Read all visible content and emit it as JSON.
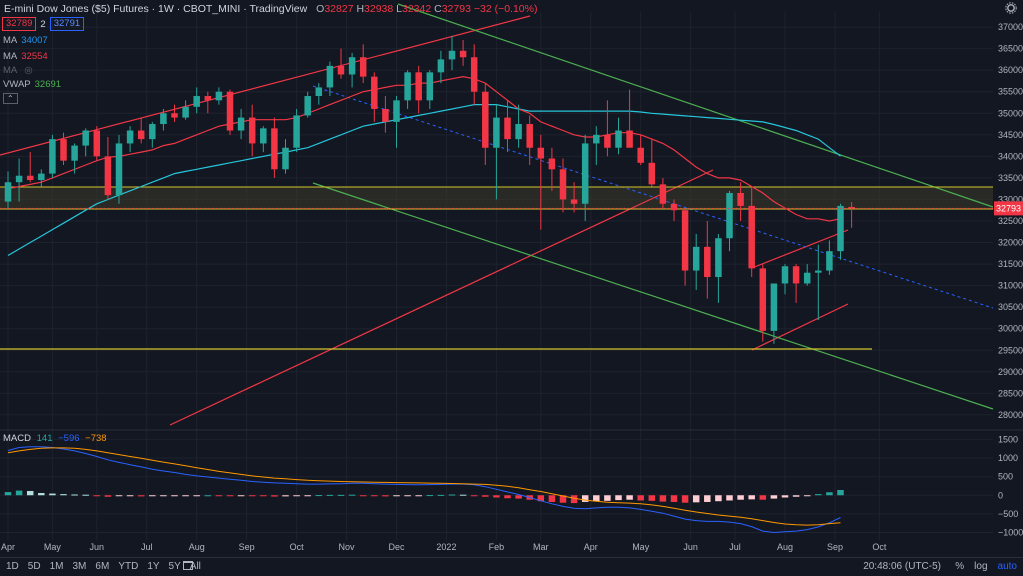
{
  "header": {
    "title": "E-mini Dow Jones ($5) Futures · 1W · CBOT_MINI · TradingView",
    "ohlc": [
      {
        "label": "O",
        "value": "32827"
      },
      {
        "label": "H",
        "value": "32938"
      },
      {
        "label": "L",
        "value": "32342"
      },
      {
        "label": "C",
        "value": "32793"
      }
    ],
    "change": "−32 (−0.10%)",
    "sell_price": "32789",
    "spread": "2",
    "buy_price": "32791"
  },
  "indicators": [
    {
      "name": "MA",
      "value": "34007",
      "color": "#2196f3"
    },
    {
      "name": "MA",
      "value": "32554",
      "color": "#f23645"
    },
    {
      "name": "MA",
      "value": "",
      "color": "#787b86"
    },
    {
      "name": "VWAP",
      "value": "32691",
      "color": "#4caf50"
    }
  ],
  "macd": {
    "name": "MACD",
    "hist": "141",
    "macd": "−596",
    "signal": "−738"
  },
  "chart_data": {
    "type": "candlestick",
    "price_ticks": [
      37000,
      36500,
      36000,
      35500,
      35000,
      34500,
      34000,
      33500,
      33000,
      32500,
      32000,
      31500,
      31000,
      30500,
      30000,
      29500,
      29000,
      28500,
      28000
    ],
    "price_ylim": [
      27650,
      37350
    ],
    "last_price": "32793",
    "macd_ticks": [
      1500,
      1000,
      500,
      0,
      -500,
      -1000
    ],
    "macd_ylim": [
      -1200,
      1750
    ],
    "x_labels": [
      {
        "label": "Apr",
        "w": 0
      },
      {
        "label": "May",
        "w": 4
      },
      {
        "label": "Jun",
        "w": 8
      },
      {
        "label": "Jul",
        "w": 12.5
      },
      {
        "label": "Aug",
        "w": 17
      },
      {
        "label": "Sep",
        "w": 21.5
      },
      {
        "label": "Oct",
        "w": 26
      },
      {
        "label": "Nov",
        "w": 30.5
      },
      {
        "label": "Dec",
        "w": 35
      },
      {
        "label": "2022",
        "w": 39.5
      },
      {
        "label": "Feb",
        "w": 44
      },
      {
        "label": "Mar",
        "w": 48
      },
      {
        "label": "Apr",
        "w": 52.5
      },
      {
        "label": "May",
        "w": 57
      },
      {
        "label": "Jun",
        "w": 61.5
      },
      {
        "label": "Jul",
        "w": 65.5
      },
      {
        "label": "Aug",
        "w": 70
      },
      {
        "label": "Sep",
        "w": 74.5
      },
      {
        "label": "Oct",
        "w": 78.5
      }
    ],
    "candles": [
      [
        32950,
        33650,
        32800,
        33400
      ],
      [
        33400,
        33950,
        32950,
        33550
      ],
      [
        33550,
        34100,
        33400,
        33450
      ],
      [
        33450,
        33700,
        33300,
        33600
      ],
      [
        33600,
        34500,
        33500,
        34400
      ],
      [
        34400,
        34550,
        33800,
        33900
      ],
      [
        33900,
        34300,
        33600,
        34250
      ],
      [
        34250,
        34650,
        34000,
        34600
      ],
      [
        34600,
        34700,
        33900,
        34000
      ],
      [
        34000,
        34450,
        33000,
        33100
      ],
      [
        33100,
        34500,
        32900,
        34300
      ],
      [
        34300,
        34700,
        34100,
        34600
      ],
      [
        34600,
        34900,
        34300,
        34400
      ],
      [
        34400,
        34800,
        34200,
        34750
      ],
      [
        34750,
        35100,
        34600,
        35000
      ],
      [
        35000,
        35200,
        34800,
        34900
      ],
      [
        34900,
        35300,
        34850,
        35150
      ],
      [
        35150,
        35600,
        35000,
        35400
      ],
      [
        35400,
        35500,
        35000,
        35300
      ],
      [
        35300,
        35600,
        35200,
        35500
      ],
      [
        35500,
        35550,
        34500,
        34600
      ],
      [
        34600,
        35100,
        34400,
        34900
      ],
      [
        34900,
        35200,
        34000,
        34300
      ],
      [
        34300,
        34700,
        34100,
        34650
      ],
      [
        34650,
        34900,
        33500,
        33700
      ],
      [
        33700,
        34400,
        33600,
        34200
      ],
      [
        34200,
        35100,
        34100,
        34950
      ],
      [
        34950,
        35500,
        34900,
        35400
      ],
      [
        35400,
        35700,
        35200,
        35600
      ],
      [
        35600,
        36200,
        35400,
        36100
      ],
      [
        36100,
        36500,
        35800,
        35900
      ],
      [
        35900,
        36400,
        35600,
        36300
      ],
      [
        36300,
        36600,
        35700,
        35850
      ],
      [
        35850,
        35950,
        34800,
        35100
      ],
      [
        35100,
        35400,
        34550,
        34800
      ],
      [
        34800,
        35400,
        34200,
        35300
      ],
      [
        35300,
        36000,
        35100,
        35950
      ],
      [
        35950,
        36100,
        35000,
        35300
      ],
      [
        35300,
        36000,
        35100,
        35950
      ],
      [
        35950,
        36450,
        35700,
        36250
      ],
      [
        36250,
        36800,
        36000,
        36450
      ],
      [
        36450,
        36700,
        36100,
        36300
      ],
      [
        36300,
        36600,
        35200,
        35500
      ],
      [
        35500,
        35700,
        33800,
        34200
      ],
      [
        34200,
        35200,
        33000,
        34900
      ],
      [
        34900,
        35300,
        34100,
        34400
      ],
      [
        34400,
        35200,
        34200,
        34750
      ],
      [
        34750,
        34950,
        33800,
        34200
      ],
      [
        34200,
        34500,
        32300,
        33950
      ],
      [
        33950,
        34200,
        33200,
        33700
      ],
      [
        33700,
        33950,
        32700,
        33000
      ],
      [
        33000,
        33400,
        32700,
        32900
      ],
      [
        32900,
        34500,
        32500,
        34300
      ],
      [
        34300,
        34700,
        33800,
        34500
      ],
      [
        34500,
        35300,
        34000,
        34200
      ],
      [
        34200,
        34900,
        34050,
        34600
      ],
      [
        34600,
        35550,
        34250,
        34200
      ],
      [
        34200,
        34500,
        33800,
        33850
      ],
      [
        33850,
        34400,
        33300,
        33350
      ],
      [
        33350,
        33500,
        32800,
        32900
      ],
      [
        32900,
        33000,
        32500,
        32750
      ],
      [
        32750,
        32800,
        31000,
        31350
      ],
      [
        31350,
        32200,
        30900,
        31900
      ],
      [
        31900,
        32500,
        30700,
        31200
      ],
      [
        31200,
        32200,
        30600,
        32100
      ],
      [
        32100,
        33200,
        31800,
        33150
      ],
      [
        33150,
        33400,
        32500,
        32850
      ],
      [
        32850,
        33300,
        31200,
        31400
      ],
      [
        31400,
        31500,
        29700,
        29950
      ],
      [
        29950,
        31000,
        29650,
        31050
      ],
      [
        31050,
        31500,
        30800,
        31450
      ],
      [
        31450,
        31500,
        30600,
        31050
      ],
      [
        31050,
        31500,
        31000,
        31300
      ],
      [
        31300,
        31950,
        30200,
        31350
      ],
      [
        31350,
        32050,
        31250,
        31800
      ],
      [
        31800,
        32900,
        31600,
        32850
      ],
      [
        32827,
        32938,
        32342,
        32793
      ]
    ],
    "macd_hist": [
      85,
      125,
      115,
      60,
      45,
      30,
      20,
      15,
      -10,
      -40,
      -25,
      -20,
      -30,
      -25,
      -20,
      -15,
      -10,
      -5,
      0,
      -5,
      -15,
      -10,
      -20,
      -25,
      -35,
      -30,
      -20,
      -10,
      5,
      10,
      10,
      15,
      -5,
      -20,
      -30,
      -25,
      -15,
      -5,
      5,
      10,
      20,
      15,
      -10,
      -40,
      -60,
      -80,
      -90,
      -120,
      -160,
      -180,
      -200,
      -210,
      -180,
      -160,
      -150,
      -130,
      -120,
      -140,
      -150,
      -170,
      -180,
      -200,
      -190,
      -180,
      -160,
      -140,
      -120,
      -110,
      -120,
      -90,
      -60,
      -40,
      -20,
      30,
      80,
      141
    ],
    "macd_line": [
      1200,
      1280,
      1300,
      1300,
      1280,
      1240,
      1190,
      1120,
      1040,
      950,
      880,
      820,
      760,
      700,
      650,
      610,
      560,
      520,
      490,
      460,
      430,
      400,
      370,
      350,
      330,
      320,
      310,
      300,
      300,
      305,
      310,
      320,
      320,
      310,
      300,
      290,
      285,
      280,
      285,
      290,
      300,
      300,
      280,
      230,
      160,
      90,
      20,
      -60,
      -150,
      -230,
      -300,
      -350,
      -360,
      -340,
      -320,
      -320,
      -340,
      -380,
      -430,
      -480,
      -560,
      -640,
      -680,
      -700,
      -700,
      -720,
      -760,
      -840,
      -960,
      -1000,
      -980,
      -960,
      -920,
      -850,
      -740,
      -596
    ],
    "signal_line": [
      1140,
      1190,
      1230,
      1260,
      1270,
      1270,
      1260,
      1230,
      1190,
      1140,
      1090,
      1040,
      990,
      940,
      890,
      840,
      790,
      740,
      690,
      640,
      600,
      560,
      520,
      490,
      460,
      440,
      420,
      400,
      390,
      380,
      370,
      360,
      355,
      350,
      345,
      340,
      335,
      330,
      325,
      320,
      315,
      310,
      300,
      290,
      270,
      240,
      200,
      150,
      100,
      40,
      -20,
      -80,
      -130,
      -160,
      -190,
      -200,
      -210,
      -230,
      -260,
      -300,
      -350,
      -400,
      -450,
      -490,
      -530,
      -560,
      -590,
      -630,
      -680,
      -730,
      -770,
      -790,
      -800,
      -790,
      -760,
      -738
    ],
    "ma50": [
      31700,
      31850,
      32000,
      32150,
      32300,
      32450,
      32600,
      32750,
      32900,
      33000,
      33100,
      33200,
      33300,
      33400,
      33500,
      33600,
      33650,
      33700,
      33750,
      33800,
      33850,
      33900,
      33950,
      34000,
      34050,
      34100,
      34150,
      34200,
      34300,
      34400,
      34500,
      34600,
      34700,
      34750,
      34800,
      34850,
      34900,
      34950,
      35000,
      35050,
      35100,
      35150,
      35200,
      35200,
      35200,
      35150,
      35100,
      35050,
      35050,
      35050,
      35050,
      35050,
      35050,
      35050,
      35050,
      35050,
      35050,
      35030,
      35000,
      34980,
      34960,
      34940,
      34920,
      34900,
      34880,
      34860,
      34840,
      34820,
      34800,
      34740,
      34670,
      34600,
      34500,
      34400,
      34200,
      34007
    ],
    "ma20": [
      33250,
      33300,
      33350,
      33400,
      33500,
      33600,
      33700,
      33800,
      33900,
      33980,
      34000,
      34050,
      34100,
      34150,
      34250,
      34300,
      34400,
      34500,
      34600,
      34700,
      34750,
      34800,
      34850,
      34850,
      34850,
      34850,
      34900,
      35000,
      35100,
      35200,
      35300,
      35400,
      35500,
      35550,
      35600,
      35650,
      35650,
      35700,
      35700,
      35750,
      35800,
      35850,
      35800,
      35700,
      35500,
      35300,
      35100,
      35000,
      34800,
      34700,
      34600,
      34500,
      34450,
      34450,
      34500,
      34550,
      34550,
      34500,
      34400,
      34300,
      34150,
      33950,
      33750,
      33600,
      33500,
      33500,
      33450,
      33300,
      33150,
      32950,
      32800,
      32650,
      32550,
      32550,
      32500,
      32554
    ]
  }
}
